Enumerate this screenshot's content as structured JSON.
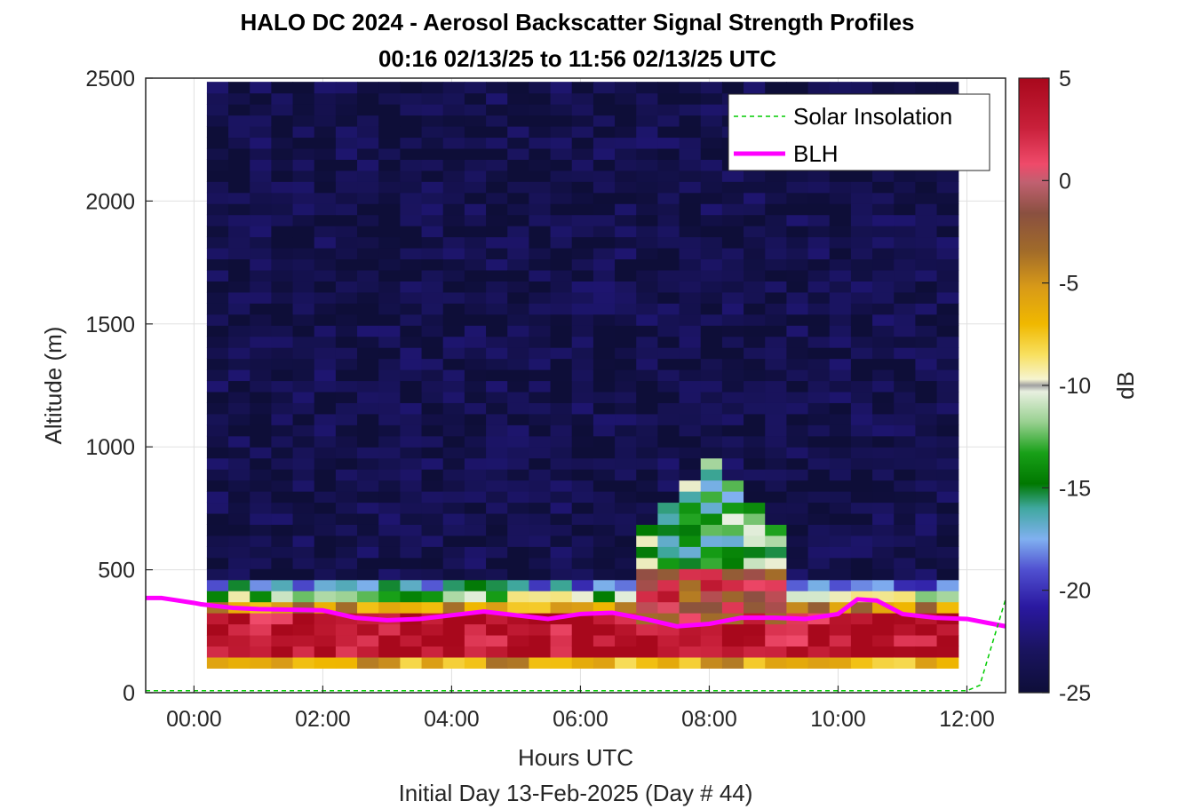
{
  "chart_data": {
    "type": "heatmap",
    "title": "HALO DC 2024 - Aerosol Backscatter Signal Strength Profiles",
    "subtitle": "00:16 02/13/25 to 11:56 02/13/25  UTC",
    "xlabel": "Hours UTC",
    "xlabel2": "Initial Day 13-Feb-2025 (Day # 44)",
    "ylabel": "Altitude (m)",
    "colorbar_label": "dB",
    "xlim": [
      -0.75,
      12.6
    ],
    "ylim": [
      0,
      2500
    ],
    "clim": [
      -25,
      5
    ],
    "x_ticks": [
      0,
      2,
      4,
      6,
      8,
      10,
      12
    ],
    "x_tick_labels": [
      "00:00",
      "02:00",
      "04:00",
      "06:00",
      "08:00",
      "10:00",
      "12:00"
    ],
    "y_ticks": [
      0,
      500,
      1000,
      1500,
      2000,
      2500
    ],
    "y_tick_labels": [
      "0",
      "500",
      "1000",
      "1500",
      "2000",
      "2500"
    ],
    "colorbar_ticks": [
      5,
      0,
      -5,
      -10,
      -15,
      -20,
      -25
    ],
    "colorbar_tick_labels": [
      "5",
      "0",
      "-5",
      "-10",
      "-15",
      "-20",
      "-25"
    ],
    "grid": true,
    "legend": {
      "location": "top-right",
      "entries": [
        "Solar Insolation",
        "BLH"
      ]
    },
    "heatmap": {
      "x_start": 0.2,
      "x_end": 11.9,
      "time_step_hours": 0.3333,
      "y_start": 100,
      "y_end": 2500,
      "altitude_step_m": 45,
      "surface_layer_db": [
        {
          "altitude_range": [
            100,
            140
          ],
          "db": -6
        },
        {
          "altitude_range": [
            140,
            330
          ],
          "db": 4
        },
        {
          "altitude_range": [
            330,
            380
          ],
          "db": -5
        },
        {
          "altitude_range": [
            380,
            430
          ],
          "db": -12
        },
        {
          "altitude_range": [
            430,
            470
          ],
          "db": -18
        }
      ],
      "background_db": -24,
      "plume": {
        "time_range": [
          6.9,
          9.2
        ],
        "top_altitude": 950,
        "db": -8
      }
    },
    "series": [
      {
        "name": "BLH",
        "color": "#ff00ff",
        "x": [
          -0.75,
          -0.5,
          -0.25,
          0.0,
          0.1,
          0.6,
          1.0,
          1.5,
          2.0,
          2.5,
          3.0,
          3.5,
          4.0,
          4.5,
          5.0,
          5.5,
          6.0,
          6.5,
          7.0,
          7.5,
          8.0,
          8.5,
          9.0,
          9.5,
          10.0,
          10.3,
          10.6,
          11.0,
          11.5,
          12.0,
          12.3,
          12.6
        ],
        "y": [
          385,
          385,
          375,
          365,
          360,
          345,
          340,
          338,
          335,
          305,
          295,
          300,
          315,
          330,
          315,
          300,
          320,
          325,
          300,
          270,
          280,
          305,
          305,
          300,
          320,
          380,
          375,
          320,
          305,
          300,
          285,
          270
        ]
      },
      {
        "name": "Solar Insolation",
        "color": "#00cc00",
        "x": [
          -0.75,
          12.0,
          12.2,
          12.6
        ],
        "y": [
          8,
          8,
          30,
          380
        ]
      }
    ]
  }
}
